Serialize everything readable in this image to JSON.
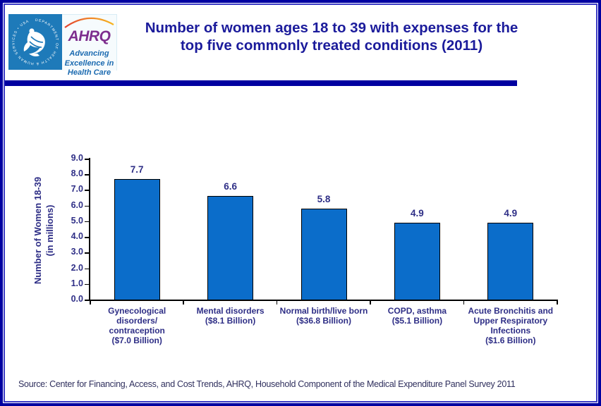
{
  "page": {
    "title_line1": "Number of women ages 18 to 39 with expenses for the",
    "title_line2": "top five commonly treated conditions (2011)",
    "source": "Source: Center for Financing, Access, and Cost Trends, AHRQ, Household Component of the Medical Expenditure Panel Survey 2011"
  },
  "logo": {
    "hhs_circular_text": "DEPARTMENT OF HEALTH & HUMAN SERVICES • USA",
    "ahrq_acronym": "AHRQ",
    "tagline_line1": "Advancing",
    "tagline_line2": "Excellence in",
    "tagline_line3": "Health Care"
  },
  "colors": {
    "bar_fill": "#0b6dca",
    "accent_navy": "#0000A0",
    "inner_border": "#3b3bc4",
    "title_navy": "#1b1b9b",
    "label_indigo": "#2e2e86",
    "hhs_blue": "#1e7ab9",
    "ahrq_purple": "#7d2e8e",
    "tagline_blue": "#1b6ab0",
    "source_text": "#30305e",
    "arc_gradient": [
      "#e2402f",
      "#f0832a",
      "#f6b51e"
    ]
  },
  "chart_data": {
    "type": "bar",
    "title": "Number of women ages 18 to 39 with expenses for the top five commonly treated conditions (2011)",
    "categories": [
      "Gynecological\ndisorders/\ncontraception\n($7.0 Billion)",
      "Mental disorders\n($8.1 Billion)",
      "Normal birth/live born\n($36.8 Billion)",
      "COPD, asthma\n($5.1 Billion)",
      "Acute Bronchitis and\nUpper Respiratory\nInfections\n($1.6 Billion)"
    ],
    "values": [
      7.7,
      6.6,
      5.8,
      4.9,
      4.9
    ],
    "xlabel": "",
    "ylabel": "Number of Women 18-39 (in millions)",
    "ylabel_line1": "Number of Women 18-39",
    "ylabel_line2": "(in millions)",
    "ylim": [
      0,
      9
    ],
    "ytick_step": 1,
    "grid": false,
    "legend": false
  }
}
